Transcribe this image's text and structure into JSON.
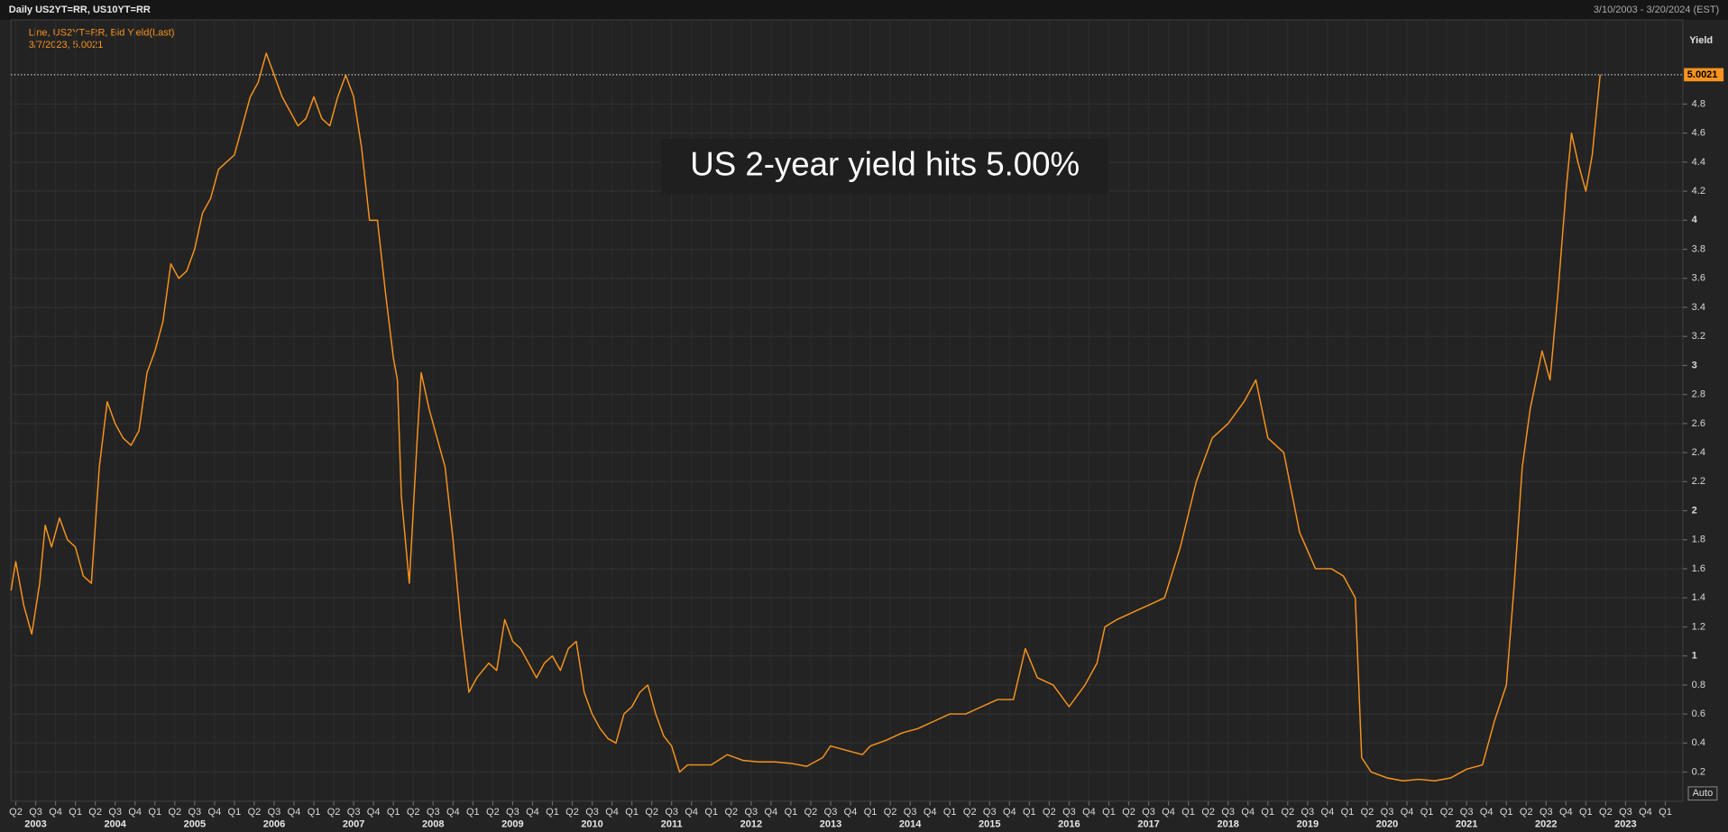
{
  "chart_data": {
    "type": "line",
    "header_left": "Daily US2YT=RR, US10YT=RR",
    "header_right": "3/10/2003 - 3/20/2024 (EST)",
    "legend_detail": "3/7/2023, 5.0021",
    "ylabel": "Yield",
    "annotation": "US 2-year yield hits 5.00%",
    "scale_button": "Auto",
    "background": "#232323",
    "grid": true,
    "x": [
      2003.19,
      2003.25,
      2003.35,
      2003.45,
      2003.55,
      2003.62,
      2003.7,
      2003.8,
      2003.9,
      2004.0,
      2004.1,
      2004.2,
      2004.3,
      2004.4,
      2004.5,
      2004.6,
      2004.7,
      2004.8,
      2004.9,
      2005.0,
      2005.1,
      2005.2,
      2005.3,
      2005.4,
      2005.5,
      2005.6,
      2005.7,
      2005.8,
      2005.9,
      2006.0,
      2006.1,
      2006.2,
      2006.3,
      2006.4,
      2006.5,
      2006.6,
      2006.7,
      2006.8,
      2006.9,
      2007.0,
      2007.1,
      2007.2,
      2007.3,
      2007.4,
      2007.5,
      2007.6,
      2007.7,
      2007.8,
      2007.9,
      2008.0,
      2008.05,
      2008.1,
      2008.2,
      2008.3,
      2008.35,
      2008.45,
      2008.55,
      2008.65,
      2008.75,
      2008.85,
      2008.95,
      2009.05,
      2009.2,
      2009.3,
      2009.4,
      2009.5,
      2009.6,
      2009.7,
      2009.8,
      2009.9,
      2010.0,
      2010.1,
      2010.2,
      2010.3,
      2010.4,
      2010.5,
      2010.6,
      2010.7,
      2010.8,
      2010.9,
      2011.0,
      2011.1,
      2011.2,
      2011.3,
      2011.4,
      2011.5,
      2011.6,
      2011.7,
      2011.8,
      2011.9,
      2012.0,
      2012.2,
      2012.4,
      2012.6,
      2012.8,
      2013.0,
      2013.2,
      2013.4,
      2013.5,
      2013.7,
      2013.9,
      2014.0,
      2014.2,
      2014.4,
      2014.6,
      2014.8,
      2015.0,
      2015.2,
      2015.4,
      2015.6,
      2015.8,
      2015.95,
      2016.1,
      2016.3,
      2016.5,
      2016.7,
      2016.85,
      2016.95,
      2017.1,
      2017.3,
      2017.5,
      2017.7,
      2017.9,
      2018.1,
      2018.3,
      2018.5,
      2018.7,
      2018.85,
      2019.0,
      2019.2,
      2019.4,
      2019.6,
      2019.8,
      2019.95,
      2020.1,
      2020.18,
      2020.3,
      2020.5,
      2020.7,
      2020.9,
      2021.1,
      2021.3,
      2021.5,
      2021.7,
      2021.85,
      2022.0,
      2022.1,
      2022.2,
      2022.3,
      2022.45,
      2022.55,
      2022.65,
      2022.75,
      2022.82,
      2022.9,
      2023.0,
      2023.08,
      2023.18
    ],
    "series": [
      {
        "name": "Line, US2YT=RR, Bid Yield(Last)",
        "color": "#f7931e",
        "values": [
          1.45,
          1.65,
          1.35,
          1.15,
          1.5,
          1.9,
          1.75,
          1.95,
          1.8,
          1.75,
          1.55,
          1.5,
          2.3,
          2.75,
          2.6,
          2.5,
          2.45,
          2.55,
          2.95,
          3.1,
          3.3,
          3.7,
          3.6,
          3.65,
          3.8,
          4.05,
          4.15,
          4.35,
          4.4,
          4.45,
          4.65,
          4.85,
          4.95,
          5.15,
          5.0,
          4.85,
          4.75,
          4.65,
          4.7,
          4.85,
          4.7,
          4.65,
          4.85,
          5.0,
          4.85,
          4.5,
          4.0,
          4.0,
          3.5,
          3.05,
          2.9,
          2.1,
          1.5,
          2.5,
          2.95,
          2.7,
          2.5,
          2.3,
          1.8,
          1.2,
          0.75,
          0.85,
          0.95,
          0.9,
          1.25,
          1.1,
          1.05,
          0.95,
          0.85,
          0.95,
          1.0,
          0.9,
          1.05,
          1.1,
          0.75,
          0.6,
          0.5,
          0.43,
          0.4,
          0.6,
          0.65,
          0.75,
          0.8,
          0.6,
          0.45,
          0.38,
          0.2,
          0.25,
          0.25,
          0.25,
          0.25,
          0.32,
          0.28,
          0.27,
          0.27,
          0.26,
          0.24,
          0.3,
          0.38,
          0.35,
          0.32,
          0.38,
          0.42,
          0.47,
          0.5,
          0.55,
          0.6,
          0.6,
          0.65,
          0.7,
          0.7,
          1.05,
          0.85,
          0.8,
          0.65,
          0.8,
          0.95,
          1.2,
          1.25,
          1.3,
          1.35,
          1.4,
          1.75,
          2.2,
          2.5,
          2.6,
          2.75,
          2.9,
          2.5,
          2.4,
          1.85,
          1.6,
          1.6,
          1.55,
          1.4,
          0.3,
          0.2,
          0.16,
          0.14,
          0.15,
          0.14,
          0.16,
          0.22,
          0.25,
          0.55,
          0.8,
          1.5,
          2.3,
          2.7,
          3.1,
          2.9,
          3.5,
          4.2,
          4.6,
          4.4,
          4.2,
          4.45,
          5.0021
        ]
      }
    ],
    "xlim": [
      2003.19,
      2024.22
    ],
    "ylim": [
      0,
      5.38
    ],
    "yticks": [
      0.2,
      0.4,
      0.6,
      0.8,
      1,
      1.2,
      1.4,
      1.6,
      1.8,
      2,
      2.2,
      2.4,
      2.6,
      2.8,
      3,
      3.2,
      3.4,
      3.6,
      3.8,
      4,
      4.2,
      4.4,
      4.6,
      4.8
    ],
    "xticks": [
      {
        "value": 2003.25,
        "label": "Q2"
      },
      {
        "value": 2003.5,
        "label": "Q3"
      },
      {
        "value": 2003.75,
        "label": "Q4"
      },
      {
        "value": 2004.0,
        "label": "Q1"
      },
      {
        "value": 2004.25,
        "label": "Q2"
      },
      {
        "value": 2004.5,
        "label": "Q3"
      },
      {
        "value": 2004.75,
        "label": "Q4"
      },
      {
        "value": 2005.0,
        "label": "Q1"
      },
      {
        "value": 2005.25,
        "label": "Q2"
      },
      {
        "value": 2005.5,
        "label": "Q3"
      },
      {
        "value": 2005.75,
        "label": "Q4"
      },
      {
        "value": 2006.0,
        "label": "Q1"
      },
      {
        "value": 2006.25,
        "label": "Q2"
      },
      {
        "value": 2006.5,
        "label": "Q3"
      },
      {
        "value": 2006.75,
        "label": "Q4"
      },
      {
        "value": 2007.0,
        "label": "Q1"
      },
      {
        "value": 2007.25,
        "label": "Q2"
      },
      {
        "value": 2007.5,
        "label": "Q3"
      },
      {
        "value": 2007.75,
        "label": "Q4"
      },
      {
        "value": 2008.0,
        "label": "Q1"
      },
      {
        "value": 2008.25,
        "label": "Q2"
      },
      {
        "value": 2008.5,
        "label": "Q3"
      },
      {
        "value": 2008.75,
        "label": "Q4"
      },
      {
        "value": 2009.0,
        "label": "Q1"
      },
      {
        "value": 2009.25,
        "label": "Q2"
      },
      {
        "value": 2009.5,
        "label": "Q3"
      },
      {
        "value": 2009.75,
        "label": "Q4"
      },
      {
        "value": 2010.0,
        "label": "Q1"
      },
      {
        "value": 2010.25,
        "label": "Q2"
      },
      {
        "value": 2010.5,
        "label": "Q3"
      },
      {
        "value": 2010.75,
        "label": "Q4"
      },
      {
        "value": 2011.0,
        "label": "Q1"
      },
      {
        "value": 2011.25,
        "label": "Q2"
      },
      {
        "value": 2011.5,
        "label": "Q3"
      },
      {
        "value": 2011.75,
        "label": "Q4"
      },
      {
        "value": 2012.0,
        "label": "Q1"
      },
      {
        "value": 2012.25,
        "label": "Q2"
      },
      {
        "value": 2012.5,
        "label": "Q3"
      },
      {
        "value": 2012.75,
        "label": "Q4"
      },
      {
        "value": 2013.0,
        "label": "Q1"
      },
      {
        "value": 2013.25,
        "label": "Q2"
      },
      {
        "value": 2013.5,
        "label": "Q3"
      },
      {
        "value": 2013.75,
        "label": "Q4"
      },
      {
        "value": 2014.0,
        "label": "Q1"
      },
      {
        "value": 2014.25,
        "label": "Q2"
      },
      {
        "value": 2014.5,
        "label": "Q3"
      },
      {
        "value": 2014.75,
        "label": "Q4"
      },
      {
        "value": 2015.0,
        "label": "Q1"
      },
      {
        "value": 2015.25,
        "label": "Q2"
      },
      {
        "value": 2015.5,
        "label": "Q3"
      },
      {
        "value": 2015.75,
        "label": "Q4"
      },
      {
        "value": 2016.0,
        "label": "Q1"
      },
      {
        "value": 2016.25,
        "label": "Q2"
      },
      {
        "value": 2016.5,
        "label": "Q3"
      },
      {
        "value": 2016.75,
        "label": "Q4"
      },
      {
        "value": 2017.0,
        "label": "Q1"
      },
      {
        "value": 2017.25,
        "label": "Q2"
      },
      {
        "value": 2017.5,
        "label": "Q3"
      },
      {
        "value": 2017.75,
        "label": "Q4"
      },
      {
        "value": 2018.0,
        "label": "Q1"
      },
      {
        "value": 2018.25,
        "label": "Q2"
      },
      {
        "value": 2018.5,
        "label": "Q3"
      },
      {
        "value": 2018.75,
        "label": "Q4"
      },
      {
        "value": 2019.0,
        "label": "Q1"
      },
      {
        "value": 2019.25,
        "label": "Q2"
      },
      {
        "value": 2019.5,
        "label": "Q3"
      },
      {
        "value": 2019.75,
        "label": "Q4"
      },
      {
        "value": 2020.0,
        "label": "Q1"
      },
      {
        "value": 2020.25,
        "label": "Q2"
      },
      {
        "value": 2020.5,
        "label": "Q3"
      },
      {
        "value": 2020.75,
        "label": "Q4"
      },
      {
        "value": 2021.0,
        "label": "Q1"
      },
      {
        "value": 2021.25,
        "label": "Q2"
      },
      {
        "value": 2021.5,
        "label": "Q3"
      },
      {
        "value": 2021.75,
        "label": "Q4"
      },
      {
        "value": 2022.0,
        "label": "Q1"
      },
      {
        "value": 2022.25,
        "label": "Q2"
      },
      {
        "value": 2022.5,
        "label": "Q3"
      },
      {
        "value": 2022.75,
        "label": "Q4"
      },
      {
        "value": 2023.0,
        "label": "Q1"
      },
      {
        "value": 2023.25,
        "label": "Q2"
      },
      {
        "value": 2023.5,
        "label": "Q3"
      },
      {
        "value": 2023.75,
        "label": "Q4"
      },
      {
        "value": 2024.0,
        "label": "Q1"
      }
    ],
    "year_ticks": [
      {
        "value": 2003.5,
        "label": "2003"
      },
      {
        "value": 2004.5,
        "label": "2004"
      },
      {
        "value": 2005.5,
        "label": "2005"
      },
      {
        "value": 2006.5,
        "label": "2006"
      },
      {
        "value": 2007.5,
        "label": "2007"
      },
      {
        "value": 2008.5,
        "label": "2008"
      },
      {
        "value": 2009.5,
        "label": "2009"
      },
      {
        "value": 2010.5,
        "label": "2010"
      },
      {
        "value": 2011.5,
        "label": "2011"
      },
      {
        "value": 2012.5,
        "label": "2012"
      },
      {
        "value": 2013.5,
        "label": "2013"
      },
      {
        "value": 2014.5,
        "label": "2014"
      },
      {
        "value": 2015.5,
        "label": "2015"
      },
      {
        "value": 2016.5,
        "label": "2016"
      },
      {
        "value": 2017.5,
        "label": "2017"
      },
      {
        "value": 2018.5,
        "label": "2018"
      },
      {
        "value": 2019.5,
        "label": "2019"
      },
      {
        "value": 2020.5,
        "label": "2020"
      },
      {
        "value": 2021.5,
        "label": "2021"
      },
      {
        "value": 2022.5,
        "label": "2022"
      },
      {
        "value": 2023.5,
        "label": "2023"
      }
    ]
  }
}
